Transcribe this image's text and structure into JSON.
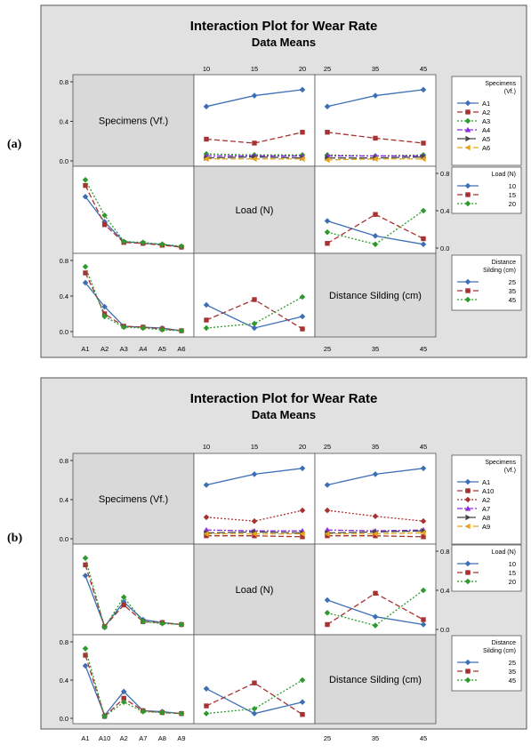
{
  "figure_labels": [
    "(a)",
    "(b)"
  ],
  "colors": {
    "A1": "#3d6fb6",
    "A2": "#a83232",
    "A3": "#2e9a2e",
    "A4": "#8a2be2",
    "A5": "#444444",
    "A6": "#e8a317",
    "A10": "#a83232",
    "A7": "#8a2be2",
    "A8": "#444444",
    "A9": "#e8a317",
    "L10": "#3d6fb6",
    "L15": "#a83232",
    "L20": "#2e9a2e",
    "D25": "#3d6fb6",
    "D35": "#a83232",
    "D45": "#2e9a2e",
    "panel_bg": "#e1e1e1",
    "cell_bg": "#ffffff",
    "diag_bg": "#d9d9d9"
  },
  "chart_data": [
    {
      "type": "line",
      "label": "(a)",
      "title": "Interaction Plot for Wear Rate",
      "subtitle": "Data Means",
      "factors": [
        {
          "name": "Specimens (Vf.)",
          "legend_title": [
            "Specimens",
            "(Vf.)"
          ],
          "levels": [
            "A1",
            "A2",
            "A3",
            "A4",
            "A5",
            "A6"
          ]
        },
        {
          "name": "Load (N)",
          "legend_title": [
            "Load (N)"
          ],
          "levels": [
            "10",
            "15",
            "20"
          ]
        },
        {
          "name": "Distance Silding (cm)",
          "legend_title": [
            "Distance",
            "Silding (cm)"
          ],
          "levels": [
            "25",
            "35",
            "45"
          ]
        }
      ],
      "ylim": [
        0,
        0.8
      ],
      "yticks": [
        "0.0",
        "0.4",
        "0.8"
      ],
      "markers": {
        "A1": "diamond",
        "A2": "square",
        "A3": "diamond",
        "A4": "triangle",
        "A5": "triangle-right",
        "A6": "triangle-left",
        "10": "diamond",
        "15": "square",
        "20": "diamond",
        "25": "diamond",
        "35": "square",
        "45": "diamond"
      },
      "dashes": {
        "A1": "solid",
        "A2": "dash",
        "A3": "dot",
        "A4": "dashdot",
        "A5": "longdash",
        "A6": "dash",
        "10": "solid",
        "15": "dash",
        "20": "dot",
        "25": "solid",
        "35": "dash",
        "45": "dot"
      },
      "spec_vs_load": {
        "A1": [
          0.55,
          0.66,
          0.72
        ],
        "A2": [
          0.22,
          0.18,
          0.29
        ],
        "A3": [
          0.07,
          0.06,
          0.06
        ],
        "A4": [
          0.05,
          0.05,
          0.05
        ],
        "A5": [
          0.03,
          0.04,
          0.03
        ],
        "A6": [
          0.02,
          0.02,
          0.02
        ]
      },
      "spec_vs_dist": {
        "A1": [
          0.55,
          0.66,
          0.72
        ],
        "A2": [
          0.29,
          0.23,
          0.18
        ],
        "A3": [
          0.06,
          0.05,
          0.06
        ],
        "A4": [
          0.05,
          0.05,
          0.05
        ],
        "A5": [
          0.03,
          0.03,
          0.04
        ],
        "A6": [
          0.01,
          0.02,
          0.02
        ]
      },
      "load_vs_spec": {
        "10": [
          0.55,
          0.28,
          0.07,
          0.05,
          0.04,
          0.01
        ],
        "15": [
          0.67,
          0.25,
          0.06,
          0.05,
          0.03,
          0.01
        ],
        "20": [
          0.73,
          0.35,
          0.07,
          0.06,
          0.04,
          0.02
        ]
      },
      "load_vs_dist": {
        "10": [
          0.29,
          0.13,
          0.04
        ],
        "15": [
          0.05,
          0.36,
          0.1
        ],
        "20": [
          0.17,
          0.04,
          0.4
        ]
      },
      "dist_vs_spec": {
        "25": [
          0.55,
          0.28,
          0.06,
          0.05,
          0.04,
          0.01
        ],
        "35": [
          0.66,
          0.2,
          0.06,
          0.05,
          0.03,
          0.01
        ],
        "45": [
          0.73,
          0.17,
          0.05,
          0.04,
          0.02,
          0.01
        ]
      },
      "dist_vs_load": {
        "25": [
          0.3,
          0.04,
          0.17
        ],
        "35": [
          0.13,
          0.36,
          0.03
        ],
        "45": [
          0.04,
          0.09,
          0.39
        ]
      }
    },
    {
      "type": "line",
      "label": "(b)",
      "title": "Interaction Plot for Wear Rate",
      "subtitle": "Data Means",
      "factors": [
        {
          "name": "Specimens (Vf.)",
          "legend_title": [
            "Specimens",
            "(Vf.)"
          ],
          "levels": [
            "A1",
            "A10",
            "A2",
            "A7",
            "A8",
            "A9"
          ]
        },
        {
          "name": "Load (N)",
          "legend_title": [
            "Load (N)"
          ],
          "levels": [
            "10",
            "15",
            "20"
          ]
        },
        {
          "name": "Distance Silding (cm)",
          "legend_title": [
            "Distance",
            "Silding (cm)"
          ],
          "levels": [
            "25",
            "35",
            "45"
          ]
        }
      ],
      "ylim": [
        0,
        0.8
      ],
      "yticks": [
        "0.0",
        "0.4",
        "0.8"
      ],
      "markers": {
        "A1": "diamond",
        "A10": "square",
        "A2": "diamond",
        "A7": "triangle",
        "A8": "triangle-right",
        "A9": "triangle-left",
        "10": "diamond",
        "15": "square",
        "20": "diamond",
        "25": "diamond",
        "35": "square",
        "45": "diamond"
      },
      "dashes": {
        "A1": "solid",
        "A10": "dash",
        "A2": "dot",
        "A7": "dashdot",
        "A8": "longdash",
        "A9": "dash",
        "10": "solid",
        "15": "dash",
        "20": "dot",
        "25": "solid",
        "35": "dash",
        "45": "dot"
      },
      "spec_vs_load": {
        "A1": [
          0.55,
          0.66,
          0.72
        ],
        "A10": [
          0.03,
          0.03,
          0.02
        ],
        "A2": [
          0.22,
          0.18,
          0.29
        ],
        "A7": [
          0.09,
          0.08,
          0.08
        ],
        "A8": [
          0.06,
          0.07,
          0.06
        ],
        "A9": [
          0.05,
          0.05,
          0.05
        ]
      },
      "spec_vs_dist": {
        "A1": [
          0.55,
          0.66,
          0.72
        ],
        "A10": [
          0.03,
          0.03,
          0.02
        ],
        "A2": [
          0.29,
          0.23,
          0.18
        ],
        "A7": [
          0.09,
          0.08,
          0.09
        ],
        "A8": [
          0.06,
          0.07,
          0.08
        ],
        "A9": [
          0.05,
          0.05,
          0.06
        ]
      },
      "load_vs_spec": {
        "10": [
          0.55,
          0.03,
          0.28,
          0.1,
          0.07,
          0.05
        ],
        "15": [
          0.66,
          0.03,
          0.25,
          0.08,
          0.07,
          0.05
        ],
        "20": [
          0.73,
          0.02,
          0.33,
          0.08,
          0.06,
          0.05
        ]
      },
      "load_vs_dist": {
        "10": [
          0.3,
          0.13,
          0.05
        ],
        "15": [
          0.05,
          0.37,
          0.1
        ],
        "20": [
          0.17,
          0.04,
          0.4
        ]
      },
      "dist_vs_spec": {
        "25": [
          0.55,
          0.03,
          0.28,
          0.08,
          0.07,
          0.05
        ],
        "35": [
          0.66,
          0.02,
          0.21,
          0.08,
          0.06,
          0.05
        ],
        "45": [
          0.73,
          0.02,
          0.17,
          0.07,
          0.06,
          0.05
        ]
      },
      "dist_vs_load": {
        "25": [
          0.31,
          0.05,
          0.17
        ],
        "35": [
          0.13,
          0.37,
          0.04
        ],
        "45": [
          0.05,
          0.1,
          0.4
        ]
      }
    }
  ]
}
